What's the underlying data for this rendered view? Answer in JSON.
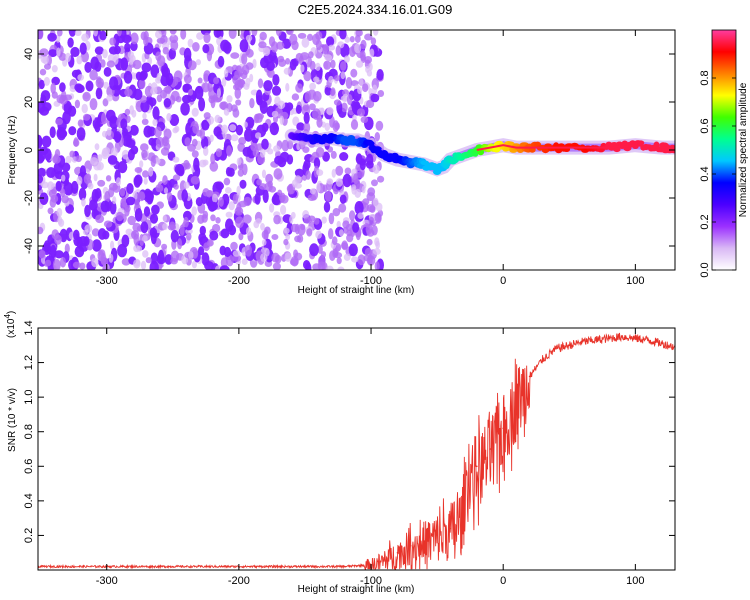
{
  "title": "C2E5.2024.334.16.01.G09",
  "chart_data": [
    {
      "type": "heatmap",
      "xlabel": "Height of straight line (km)",
      "ylabel": "Frequency (Hz)",
      "xlim": [
        -352,
        130
      ],
      "ylim": [
        -50,
        50
      ],
      "xticks": [
        -300,
        -200,
        -100,
        0,
        100
      ],
      "yticks": [
        -40,
        -20,
        0,
        20,
        40
      ],
      "colorbar": {
        "label": "Normalized spectral amplitude",
        "range": [
          0,
          1
        ],
        "ticks": [
          0.0,
          0.2,
          0.4,
          0.6,
          0.8
        ],
        "colors": [
          "#ffffff",
          "#d9b8f5",
          "#9b30ff",
          "#4b00ff",
          "#0000ff",
          "#00c8ff",
          "#00ff90",
          "#40ff00",
          "#ffff00",
          "#ff8000",
          "#ff0000",
          "#ff3ca0"
        ]
      },
      "noise_region": {
        "x_range": [
          -352,
          -100
        ],
        "freq_range": [
          -50,
          50
        ]
      },
      "signal_trace": {
        "x": [
          -160,
          -150,
          -140,
          -130,
          -120,
          -110,
          -100,
          -90,
          -80,
          -70,
          -60,
          -50,
          -45,
          -40,
          -30,
          -20,
          -10,
          0,
          10,
          20,
          40,
          60,
          80,
          100,
          120,
          130
        ],
        "frequency": [
          6,
          5,
          4,
          5,
          4,
          4,
          2,
          -2,
          -4,
          -5,
          -6,
          -8,
          -7,
          -4,
          -2,
          0,
          1,
          2,
          1,
          1,
          1,
          1,
          1,
          2,
          1,
          1
        ],
        "amplitude": [
          0.25,
          0.3,
          0.35,
          0.35,
          0.4,
          0.4,
          0.35,
          0.35,
          0.35,
          0.4,
          0.45,
          0.45,
          0.45,
          0.5,
          0.55,
          0.6,
          0.7,
          0.75,
          0.8,
          0.85,
          0.9,
          0.9,
          0.95,
          0.95,
          0.95,
          0.95
        ]
      }
    },
    {
      "type": "line",
      "xlabel": "Height of straight line (km)",
      "ylabel": "SNR (10 * v/v)",
      "y_multiplier": "(x10",
      "y_multiplier_exp": "4",
      "y_multiplier_close": ")",
      "xlim": [
        -352,
        130
      ],
      "ylim": [
        0,
        1.4
      ],
      "xticks": [
        -300,
        -200,
        -100,
        0,
        100
      ],
      "yticks": [
        0.2,
        0.4,
        0.6,
        0.8,
        1.0,
        1.2,
        1.4
      ],
      "series": [
        {
          "color": "#e8332a",
          "x": [
            -352,
            -300,
            -250,
            -200,
            -150,
            -120,
            -100,
            -90,
            -80,
            -70,
            -60,
            -50,
            -40,
            -30,
            -28,
            -20,
            -10,
            0,
            10,
            20,
            30,
            40,
            50,
            60,
            70,
            80,
            90,
            100,
            110,
            120,
            130
          ],
          "values": [
            0.02,
            0.02,
            0.02,
            0.02,
            0.02,
            0.02,
            0.03,
            0.06,
            0.1,
            0.14,
            0.17,
            0.2,
            0.24,
            0.32,
            0.55,
            0.6,
            0.7,
            0.82,
            0.98,
            1.12,
            1.22,
            1.28,
            1.3,
            1.32,
            1.33,
            1.34,
            1.35,
            1.34,
            1.33,
            1.31,
            1.29
          ]
        }
      ]
    }
  ]
}
